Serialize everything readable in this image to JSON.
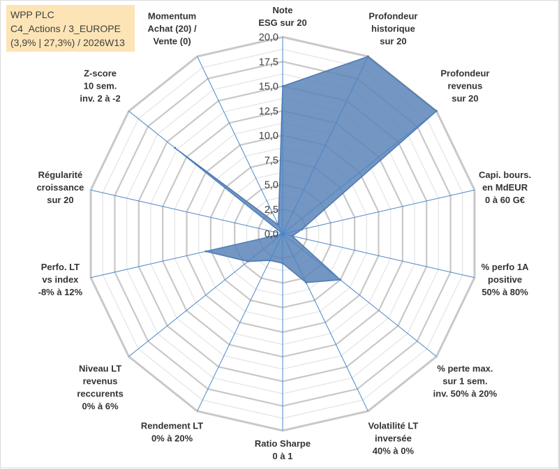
{
  "title_box": {
    "line1": "WPP PLC",
    "line2": "C4_Actions / 3_EUROPE",
    "line3": "(3,9% | 27,3%) / 2026W13"
  },
  "colors": {
    "grid": "#c8c8c8",
    "spoke": "#4a86c8",
    "fill": "#5b84b9",
    "stroke": "#4f78ad",
    "title_bg": "#fce4b6"
  },
  "chart_data": {
    "type": "radar",
    "grid": true,
    "rlim": [
      0,
      20
    ],
    "ticks": [
      "0,0",
      "2,5",
      "5,0",
      "7,5",
      "10,0",
      "12,5",
      "15,0",
      "17,5",
      "20,0"
    ],
    "tick_values": [
      0,
      2.5,
      5,
      7.5,
      10,
      12.5,
      15,
      17.5,
      20
    ],
    "axes": [
      [
        "Note",
        "ESG sur 20"
      ],
      [
        "Profondeur",
        "historique",
        "sur 20"
      ],
      [
        "Profondeur",
        "revenus",
        "sur 20"
      ],
      [
        "Capi. bours.",
        "en MdEUR",
        "0 à 60 G€"
      ],
      [
        "% perfo 1A",
        "positive",
        "50% à 80%"
      ],
      [
        "% perte max.",
        "sur 1 sem.",
        "inv. 50% à 20%"
      ],
      [
        "Volatilité LT",
        "inversée",
        "40% à 0%"
      ],
      [
        "Ratio Sharpe",
        "0 à 1"
      ],
      [
        "Rendement LT",
        "0% à 20%"
      ],
      [
        "Niveau LT",
        "revenus",
        "reccurents",
        "0% à 6%"
      ],
      [
        "Perfo. LT",
        "vs index",
        "-8% à 12%"
      ],
      [
        "Régularité",
        "croissance",
        "sur 20"
      ],
      [
        "Z-score",
        "10 sem.",
        "inv. 2 à -2"
      ],
      [
        "Momentum",
        "Achat (20) /",
        "Vente (0)"
      ]
    ],
    "series": [
      {
        "values": [
          15,
          20,
          20,
          2,
          1,
          7.5,
          5.5,
          3,
          3,
          4.5,
          8,
          0,
          14,
          1
        ]
      }
    ]
  }
}
